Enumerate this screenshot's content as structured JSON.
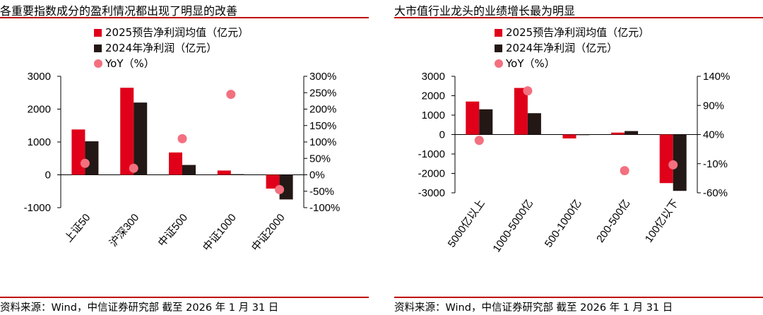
{
  "colors": {
    "current": "#e0001a",
    "prior": "#231815",
    "yoy": "#f3707f",
    "rule": "#c00000"
  },
  "legend": {
    "forecast": "2025预告净利润均值（亿元）",
    "actual": "2024年净利润（亿元）",
    "yoy": "YoY（%）"
  },
  "left": {
    "title": "各重要指数成分的盈利情况都出现了明显的改善",
    "source": "资料来源：Wind，中信证券研究部  截至 2026 年 1 月 31 日"
  },
  "right": {
    "title": "大市值行业龙头的业绩增长最为明显",
    "source": "资料来源：Wind，中信证券研究部  截至 2026 年 1 月 31 日"
  },
  "chart_data": [
    {
      "type": "bar",
      "title": "各重要指数成分的盈利情况都出现了明显的改善",
      "categories": [
        "上证50",
        "沪深300",
        "中证500",
        "中证1000",
        "中证2000"
      ],
      "series": [
        {
          "name": "2025预告净利润均值（亿元）",
          "axis": "left",
          "values": [
            1380,
            2650,
            680,
            130,
            -420
          ]
        },
        {
          "name": "2024年净利润（亿元）",
          "axis": "left",
          "values": [
            1020,
            2200,
            300,
            20,
            -750
          ]
        },
        {
          "name": "YoY（%）",
          "axis": "right",
          "kind": "scatter",
          "values": [
            35,
            20,
            110,
            245,
            -45
          ]
        }
      ],
      "ylim": [
        -1000,
        3000
      ],
      "yticks": [
        -1000,
        0,
        1000,
        2000,
        3000
      ],
      "ytick_labels": [
        "-1000",
        "0",
        "1000",
        "2000",
        "3000"
      ],
      "y2lim": [
        -100,
        300
      ],
      "y2ticks": [
        -100,
        -50,
        0,
        50,
        100,
        150,
        200,
        250,
        300
      ],
      "y2tick_labels": [
        "-100%",
        "-50%",
        "0%",
        "50%",
        "100%",
        "150%",
        "200%",
        "250%",
        "300%"
      ],
      "grid": false,
      "legend_position": "top-center"
    },
    {
      "type": "bar",
      "title": "大市值行业龙头的业绩增长最为明显",
      "categories": [
        "5000亿以上",
        "1000-5000亿",
        "500-1000亿",
        "200-500亿",
        "100亿以下"
      ],
      "series": [
        {
          "name": "2025预告净利润均值（亿元）",
          "axis": "left",
          "values": [
            1700,
            2400,
            -200,
            100,
            -2500
          ]
        },
        {
          "name": "2024年净利润（亿元）",
          "axis": "left",
          "values": [
            1300,
            1100,
            0,
            180,
            -2900
          ]
        },
        {
          "name": "YoY（%）",
          "axis": "right",
          "kind": "scatter",
          "values": [
            30,
            115,
            null,
            -22,
            -12
          ]
        }
      ],
      "ylim": [
        -3000,
        3000
      ],
      "yticks": [
        -3000,
        -2000,
        -1000,
        0,
        1000,
        2000,
        3000
      ],
      "ytick_labels": [
        "-3000",
        "-2000",
        "-1000",
        "0",
        "1000",
        "2000",
        "3000"
      ],
      "y2lim": [
        -60,
        140
      ],
      "y2ticks": [
        -60,
        -10,
        40,
        90,
        140
      ],
      "y2tick_labels": [
        "-60%",
        "-10%",
        "40%",
        "90%",
        "140%"
      ],
      "grid": false,
      "legend_position": "top-center"
    }
  ]
}
